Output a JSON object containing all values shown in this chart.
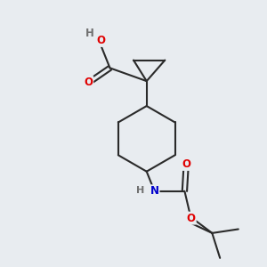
{
  "background_color": "#e8ecf0",
  "bond_color": "#2a2a2a",
  "bond_width": 1.5,
  "atom_colors": {
    "O": "#e00000",
    "N": "#0000cc",
    "C": "#2a2a2a",
    "H": "#707070"
  },
  "font_size_atom": 8.5,
  "font_size_H": 8.0,
  "fig_width": 3.0,
  "fig_height": 3.0,
  "dpi": 100
}
